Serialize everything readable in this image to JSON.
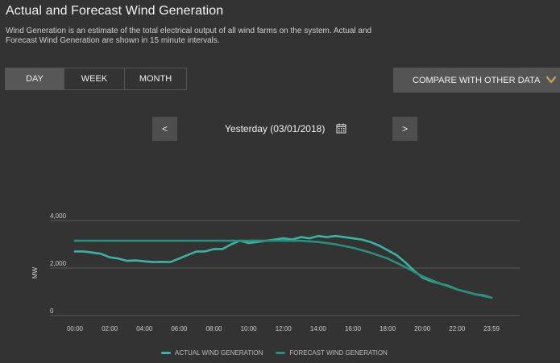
{
  "page": {
    "title": "Actual and Forecast Wind Generation",
    "description": "Wind Generation is an estimate of the total electrical output of all wind farms on the system. Actual and Forecast Wind Generation are shown in 15 minute intervals."
  },
  "period_tabs": [
    {
      "label": "DAY",
      "active": true
    },
    {
      "label": "WEEK",
      "active": false
    },
    {
      "label": "MONTH",
      "active": false
    }
  ],
  "compare": {
    "label": "COMPARE WITH OTHER DATA",
    "icon": "chevron-down-icon",
    "icon_color": "#c8a45a"
  },
  "date_nav": {
    "prev_label": "<",
    "next_label": ">",
    "date_text": "Yesterday (03/01/2018)",
    "calendar_icon": "calendar-icon"
  },
  "colors": {
    "background": "#333333",
    "actual": "#3bb3a3",
    "forecast": "#2a8f7c",
    "grid": "#5a5a5a"
  },
  "chart_data": {
    "type": "line",
    "ylabel": "MW",
    "xlabel": "",
    "ylim": [
      0,
      4000
    ],
    "y_ticks": [
      "4,000",
      "2,000",
      "0"
    ],
    "x_ticks": [
      "00:00",
      "02:00",
      "04:00",
      "06:00",
      "08:00",
      "10:00",
      "12:00",
      "14:00",
      "16:00",
      "18:00",
      "20:00",
      "22:00",
      "23:59"
    ],
    "grid": true,
    "legend_position": "bottom",
    "series": [
      {
        "name": "ACTUAL WIND GENERATION",
        "x": [
          0,
          0.5,
          1,
          1.5,
          2,
          2.5,
          3,
          3.5,
          4,
          4.5,
          5,
          5.5,
          6,
          6.5,
          7,
          7.5,
          8,
          8.5,
          9,
          9.5,
          10,
          10.5,
          11,
          11.5,
          12,
          12.5,
          13,
          13.5,
          14,
          14.5,
          15,
          15.5,
          16,
          16.5,
          17,
          17.5,
          18,
          18.5,
          19,
          19.5,
          20,
          20.5,
          21,
          21.5,
          22,
          22.5,
          23,
          23.5,
          23.98
        ],
        "values": [
          2700,
          2700,
          2650,
          2600,
          2450,
          2400,
          2300,
          2320,
          2280,
          2250,
          2260,
          2250,
          2400,
          2550,
          2700,
          2700,
          2800,
          2800,
          3000,
          3150,
          3050,
          3100,
          3150,
          3200,
          3250,
          3200,
          3300,
          3250,
          3350,
          3300,
          3350,
          3300,
          3250,
          3200,
          3100,
          2950,
          2750,
          2550,
          2250,
          1900,
          1600,
          1450,
          1350,
          1250,
          1100,
          1000,
          900,
          850,
          750
        ]
      },
      {
        "name": "FORECAST WIND GENERATION",
        "x": [
          0,
          2,
          4,
          6,
          8,
          10,
          12,
          13,
          14,
          15,
          16,
          17,
          18,
          19,
          20,
          21,
          22,
          23,
          23.98
        ],
        "values": [
          3150,
          3150,
          3150,
          3150,
          3150,
          3150,
          3150,
          3150,
          3100,
          3000,
          2850,
          2650,
          2400,
          2050,
          1650,
          1350,
          1100,
          900,
          750
        ]
      }
    ]
  }
}
